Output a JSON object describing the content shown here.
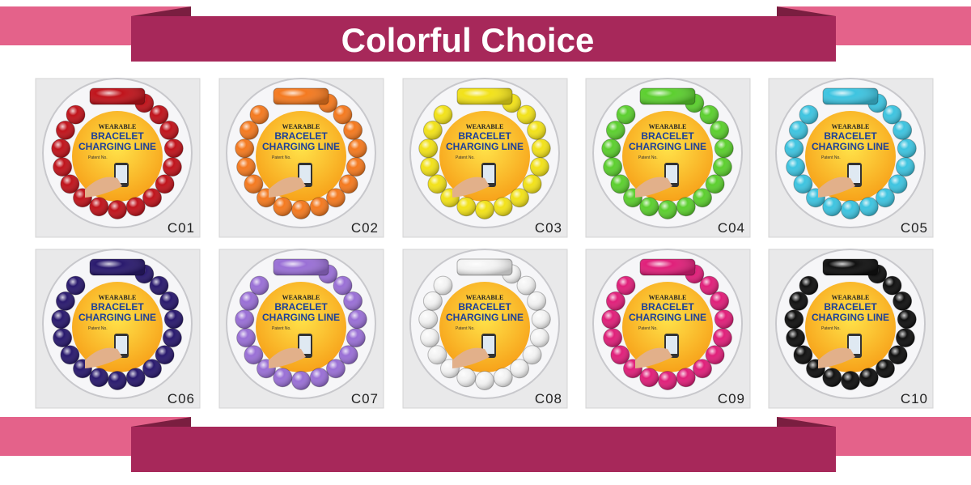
{
  "header": {
    "title": "Colorful Choice"
  },
  "package": {
    "brand": "WEARABLE",
    "line1": "BRACELET",
    "line2": "CHARGING LINE",
    "field": "Patent No."
  },
  "products": [
    {
      "code": "C01",
      "color": "#c0141c"
    },
    {
      "code": "C02",
      "color": "#f47a20"
    },
    {
      "code": "C03",
      "color": "#f2e21a"
    },
    {
      "code": "C04",
      "color": "#5ccf2f"
    },
    {
      "code": "C05",
      "color": "#3ec4e0"
    },
    {
      "code": "C06",
      "color": "#2a1a6e"
    },
    {
      "code": "C07",
      "color": "#9a70d6"
    },
    {
      "code": "C08",
      "color": "#f4f4f4"
    },
    {
      "code": "C09",
      "color": "#e0207a"
    },
    {
      "code": "C10",
      "color": "#111111"
    }
  ]
}
